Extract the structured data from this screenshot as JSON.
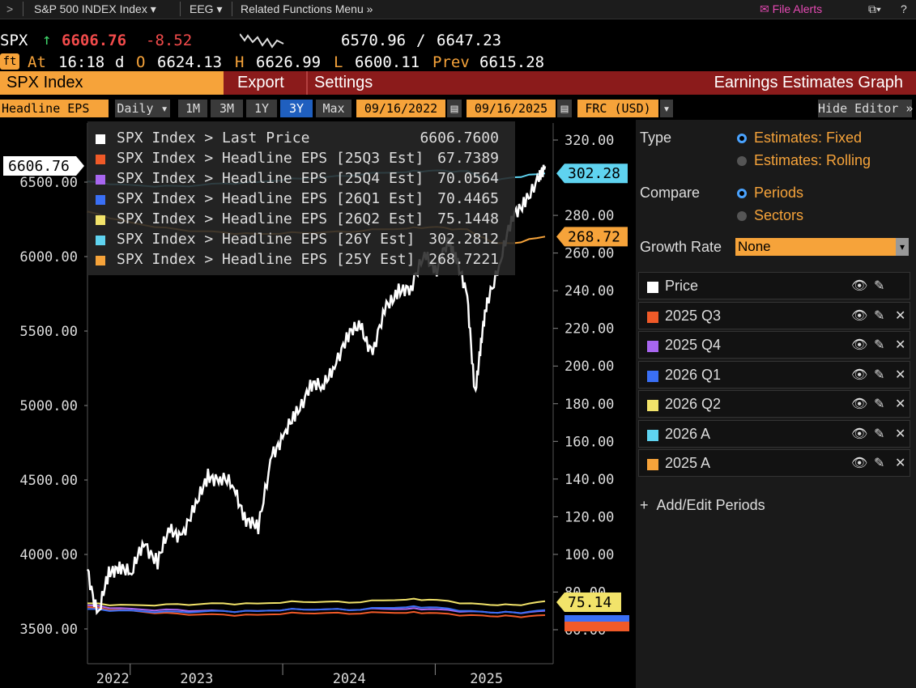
{
  "topbar": {
    "back": ">",
    "security": "S&P 500 INDEX Index",
    "function": "EEG",
    "related": "Related Functions Menu",
    "file_alerts": "File Alerts",
    "help": "?"
  },
  "quote": {
    "ticker": "SPX",
    "last": "6606.76",
    "change": "-8.52",
    "low_range": "6570.96",
    "slash": "/",
    "high_range": "6647.23",
    "badge": "ft",
    "at_label": "At",
    "time": "16:18",
    "d": "d",
    "o_label": "O",
    "open": "6624.13",
    "h_label": "H",
    "high": "6626.99",
    "l_label": "L",
    "low": "6600.11",
    "prev_label": "Prev",
    "prev": "6615.28"
  },
  "tabbar": {
    "index": "SPX Index",
    "export": "Export",
    "settings": "Settings",
    "title": "Earnings Estimates Graph"
  },
  "toolbar": {
    "field": "Headline EPS",
    "frequency": "Daily",
    "ranges": [
      "1M",
      "3M",
      "1Y",
      "3Y",
      "Max"
    ],
    "start": "09/16/2022",
    "end": "09/16/2025",
    "currency": "FRC (USD)",
    "hide_editor": "Hide Editor"
  },
  "legend": [
    {
      "name": "SPX Index > Last Price",
      "value": "6606.7600",
      "color": "#ffffff"
    },
    {
      "name": "SPX Index > Headline EPS [25Q3 Est]",
      "value": "67.7389",
      "color": "#f05a28"
    },
    {
      "name": "SPX Index > Headline EPS [25Q4 Est]",
      "value": "70.0564",
      "color": "#a866f0"
    },
    {
      "name": "SPX Index > Headline EPS [26Q1 Est]",
      "value": "70.4465",
      "color": "#3a6ff5"
    },
    {
      "name": "SPX Index > Headline EPS [26Q2 Est]",
      "value": "75.1448",
      "color": "#f2e36a"
    },
    {
      "name": "SPX Index > Headline EPS [26Y Est]",
      "value": "302.2812",
      "color": "#5fd3f0"
    },
    {
      "name": "SPX Index > Headline EPS [25Y Est]",
      "value": "268.7221",
      "color": "#f6a33a"
    }
  ],
  "chart_data": {
    "type": "line",
    "x_labels": [
      "2022",
      "2023",
      "2024",
      "2025"
    ],
    "left_axis": {
      "ticks": [
        "6500.00",
        "6000.00",
        "5500.00",
        "5000.00",
        "4500.00",
        "4000.00",
        "3500.00"
      ],
      "range": [
        3500,
        6500
      ]
    },
    "right_axis": {
      "ticks": [
        "320.00",
        "280.00",
        "260.00",
        "240.00",
        "220.00",
        "200.00",
        "180.00",
        "160.00",
        "140.00",
        "120.00",
        "100.00",
        "80.00",
        "60.00"
      ],
      "range": [
        60,
        320
      ]
    },
    "callouts": {
      "last_price": "6606.76",
      "eps_26y": "302.28",
      "eps_25y": "268.72",
      "eps_26q2": "75.14"
    },
    "series": [
      {
        "name": "SPX Index > Last Price",
        "axis": "left",
        "color": "#ffffff",
        "x": [
          2022.71,
          2022.78,
          2022.85,
          2022.92,
          2023.0,
          2023.08,
          2023.17,
          2023.25,
          2023.33,
          2023.42,
          2023.5,
          2023.58,
          2023.67,
          2023.75,
          2023.83,
          2023.92,
          2024.0,
          2024.08,
          2024.17,
          2024.25,
          2024.33,
          2024.42,
          2024.5,
          2024.58,
          2024.67,
          2024.75,
          2024.83,
          2024.92,
          2025.0,
          2025.08,
          2025.13,
          2025.2,
          2025.25,
          2025.29,
          2025.33,
          2025.42,
          2025.5,
          2025.58,
          2025.67,
          2025.71
        ],
        "y": [
          3900,
          3600,
          3850,
          3950,
          3850,
          4100,
          3950,
          4150,
          4150,
          4300,
          4550,
          4500,
          4450,
          4250,
          4150,
          4700,
          4780,
          4950,
          5150,
          5100,
          5300,
          5450,
          5550,
          5350,
          5650,
          5800,
          5750,
          6050,
          5900,
          6100,
          6000,
          5700,
          5100,
          5400,
          5700,
          6000,
          6250,
          6400,
          6500,
          6606.76
        ]
      },
      {
        "name": "SPX Index > Headline EPS [26Y Est]",
        "axis": "right",
        "color": "#5fd3f0",
        "x": [
          2022.71,
          2023.0,
          2023.3,
          2023.6,
          2023.9,
          2024.2,
          2024.5,
          2024.8,
          2025.0,
          2025.2,
          2025.35,
          2025.5,
          2025.71
        ],
        "y": [
          298,
          296,
          295,
          297,
          298,
          300,
          302,
          303,
          304,
          303,
          299,
          300,
          302.28
        ]
      },
      {
        "name": "SPX Index > Headline EPS [25Y Est]",
        "axis": "right",
        "color": "#f6a33a",
        "x": [
          2022.71,
          2023.0,
          2023.3,
          2023.6,
          2023.9,
          2024.2,
          2024.5,
          2024.8,
          2025.0,
          2025.2,
          2025.35,
          2025.5,
          2025.71
        ],
        "y": [
          282,
          276,
          272,
          271,
          270,
          271,
          272,
          273,
          274,
          272,
          266,
          265,
          268.72
        ]
      },
      {
        "name": "SPX Index > Headline EPS [26Q2 Est]",
        "axis": "right",
        "color": "#f2e36a",
        "x": [
          2022.71,
          2023.0,
          2023.3,
          2023.6,
          2023.9,
          2024.2,
          2024.5,
          2024.8,
          2025.0,
          2025.3,
          2025.5,
          2025.71
        ],
        "y": [
          74,
          73,
          73,
          74,
          74,
          75,
          75,
          76,
          76,
          73,
          73,
          75.14
        ]
      },
      {
        "name": "SPX Index > Headline EPS [26Q1 Est]",
        "axis": "right",
        "color": "#3a6ff5",
        "x": [
          2022.71,
          2023.0,
          2023.3,
          2023.6,
          2023.9,
          2024.2,
          2024.5,
          2024.8,
          2025.0,
          2025.3,
          2025.5,
          2025.71
        ],
        "y": [
          71,
          70,
          69,
          70,
          70,
          71,
          71,
          72,
          72,
          69,
          69,
          70.45
        ]
      },
      {
        "name": "SPX Index > Headline EPS [25Q4 Est]",
        "axis": "right",
        "color": "#a866f0",
        "x": [
          2022.71,
          2023.0,
          2023.3,
          2023.6,
          2023.9,
          2024.2,
          2024.5,
          2024.8,
          2025.0,
          2025.3,
          2025.5,
          2025.71
        ],
        "y": [
          73,
          71,
          70,
          70,
          70,
          71,
          71,
          71,
          71,
          69,
          69,
          70.06
        ]
      },
      {
        "name": "SPX Index > Headline EPS [25Q3 Est]",
        "axis": "right",
        "color": "#f05a28",
        "x": [
          2022.71,
          2023.0,
          2023.3,
          2023.6,
          2023.9,
          2024.2,
          2024.5,
          2024.8,
          2025.0,
          2025.3,
          2025.5,
          2025.71
        ],
        "y": [
          72,
          70,
          68,
          68,
          68,
          69,
          69,
          69,
          69,
          67,
          67,
          67.74
        ]
      }
    ]
  },
  "editor": {
    "type_label": "Type",
    "type_options": [
      "Estimates: Fixed",
      "Estimates: Rolling"
    ],
    "compare_label": "Compare",
    "compare_options": [
      "Periods",
      "Sectors"
    ],
    "growth_label": "Growth Rate",
    "growth_value": "None",
    "series": [
      {
        "label": "Price",
        "color": "#ffffff",
        "removable": false
      },
      {
        "label": "2025 Q3",
        "color": "#f05a28",
        "removable": true
      },
      {
        "label": "2025 Q4",
        "color": "#a866f0",
        "removable": true
      },
      {
        "label": "2026 Q1",
        "color": "#3a6ff5",
        "removable": true
      },
      {
        "label": "2026 Q2",
        "color": "#f2e36a",
        "removable": true
      },
      {
        "label": "2026 A",
        "color": "#5fd3f0",
        "removable": true
      },
      {
        "label": "2025 A",
        "color": "#f6a33a",
        "removable": true
      }
    ],
    "add_label": "Add/Edit Periods"
  }
}
